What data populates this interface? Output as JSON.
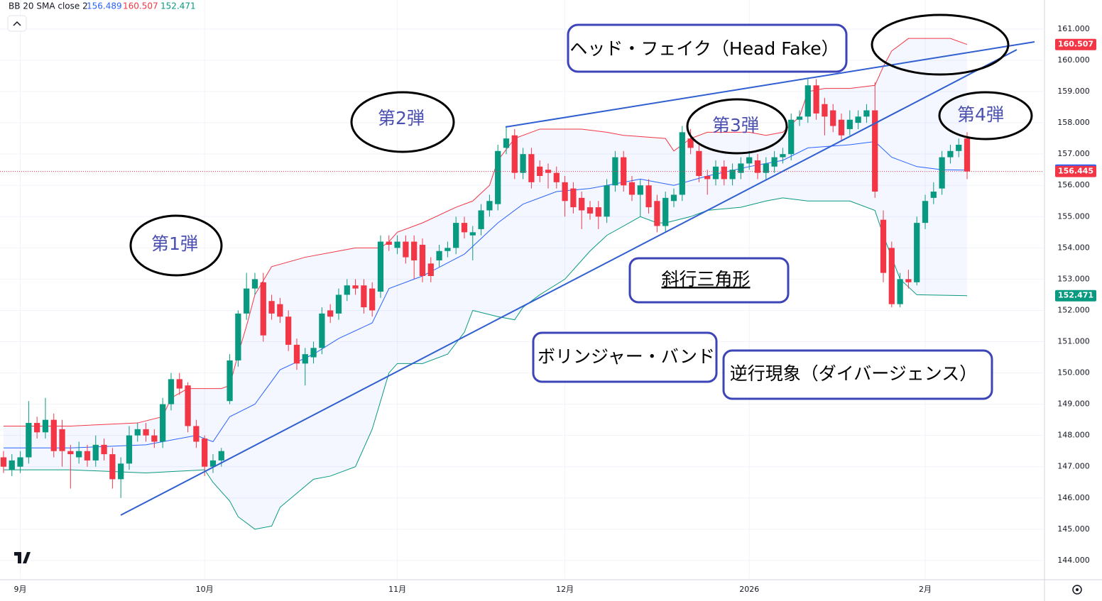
{
  "chart_data": {
    "type": "candlestick",
    "indicator_label": "BB 20 SMA close 2",
    "up_color": "#089981",
    "down_color": "#f23645",
    "open": [
      147.3,
      146.9,
      147.0,
      147.3,
      148.4,
      148.1,
      148.5,
      148.2,
      147.5,
      147.3,
      147.5,
      147.2,
      147.7,
      147.4,
      146.6,
      147.1,
      148.0,
      148.2,
      148.0,
      147.8,
      149.0,
      149.8,
      149.6,
      148.3,
      147.9,
      147.0,
      147.2,
      149.1,
      150.4,
      151.9,
      152.7,
      152.9,
      152.3,
      152.2,
      151.8,
      150.9,
      150.3,
      150.5,
      150.8,
      152.0,
      151.9,
      152.5,
      152.8,
      152.8,
      152.7,
      152.6,
      154.2,
      154.0,
      154.2,
      154.2,
      154.1,
      153.5,
      153.6,
      153.9,
      154.0,
      154.8,
      154.4,
      154.6,
      155.2,
      155.4,
      157.2,
      157.6,
      156.4,
      157.0,
      156.6,
      156.5,
      156.4,
      156.1,
      155.9,
      155.6,
      155.3,
      155.3,
      155.0,
      156.0,
      156.9,
      156.1,
      155.7,
      156.0,
      155.5,
      154.7,
      155.5,
      155.7,
      157.5,
      157.1,
      156.3,
      156.2,
      156.6,
      156.2,
      156.4,
      156.7,
      156.8,
      156.4,
      156.6,
      156.9,
      157.0,
      158.1,
      158.2,
      159.2,
      158.6,
      158.4,
      158.1,
      157.8,
      158.0,
      158.2,
      158.4,
      154.9,
      154.0,
      152.2,
      153.0,
      152.9,
      154.8,
      155.6,
      155.9,
      156.9,
      157.1,
      157.5
    ],
    "high": [
      147.5,
      147.4,
      147.5,
      149.1,
      148.6,
      149.2,
      148.7,
      148.5,
      147.7,
      147.8,
      147.7,
      148.0,
      147.9,
      147.6,
      147.3,
      148.3,
      148.4,
      148.4,
      148.2,
      149.2,
      150.0,
      150.0,
      149.7,
      148.5,
      148.0,
      147.4,
      147.6,
      150.6,
      152.0,
      153.2,
      153.2,
      153.2,
      152.5,
      152.4,
      152.0,
      151.1,
      150.8,
      151.0,
      152.1,
      152.2,
      152.7,
      153.0,
      153.0,
      153.0,
      152.9,
      154.4,
      154.4,
      154.4,
      154.4,
      154.4,
      154.3,
      153.7,
      154.1,
      154.2,
      155.0,
      155.0,
      154.7,
      155.4,
      155.7,
      157.3,
      157.9,
      157.8,
      157.2,
      157.2,
      156.8,
      156.7,
      156.6,
      156.3,
      156.1,
      155.8,
      155.5,
      155.5,
      156.2,
      157.1,
      157.1,
      156.3,
      156.2,
      156.2,
      155.7,
      155.8,
      155.9,
      157.9,
      157.8,
      157.3,
      156.5,
      156.8,
      156.8,
      156.7,
      156.9,
      157.1,
      157.0,
      156.9,
      157.1,
      157.2,
      158.3,
      158.4,
      159.4,
      159.4,
      158.8,
      158.6,
      158.3,
      158.4,
      158.4,
      158.6,
      159.3,
      155.2,
      154.2,
      153.2,
      153.3,
      155.0,
      155.7,
      156.1,
      157.1,
      157.3,
      157.5,
      157.7
    ],
    "low": [
      146.8,
      146.7,
      146.8,
      147.1,
      147.9,
      147.9,
      147.3,
      147.0,
      146.3,
      147.1,
      147.0,
      147.0,
      147.2,
      146.3,
      146.0,
      146.9,
      147.8,
      147.8,
      147.6,
      147.6,
      148.8,
      149.3,
      148.1,
      147.6,
      146.7,
      146.8,
      147.0,
      149.0,
      150.2,
      151.7,
      152.5,
      151.0,
      151.7,
      151.6,
      150.7,
      150.1,
      149.6,
      150.3,
      150.6,
      151.6,
      151.7,
      152.3,
      152.5,
      151.9,
      151.8,
      152.4,
      153.9,
      153.8,
      153.5,
      153.0,
      152.9,
      152.9,
      153.4,
      153.7,
      153.8,
      154.3,
      153.6,
      154.4,
      155.0,
      155.2,
      157.0,
      156.2,
      156.2,
      155.9,
      156.1,
      155.9,
      155.9,
      155.0,
      155.1,
      154.6,
      154.9,
      154.6,
      154.8,
      155.8,
      155.8,
      155.5,
      155.0,
      155.1,
      154.5,
      154.5,
      155.3,
      155.5,
      157.0,
      156.1,
      155.7,
      156.0,
      156.0,
      156.0,
      156.2,
      156.5,
      156.2,
      156.2,
      156.4,
      156.7,
      156.8,
      157.9,
      158.0,
      158.1,
      157.6,
      157.7,
      157.4,
      157.6,
      157.8,
      158.0,
      155.6,
      152.9,
      152.1,
      152.1,
      152.7,
      152.8,
      154.6,
      155.4,
      155.7,
      156.7,
      156.9,
      156.2
    ],
    "close": [
      147.0,
      147.2,
      147.3,
      148.4,
      148.1,
      148.5,
      147.5,
      147.5,
      147.4,
      147.5,
      147.2,
      147.7,
      147.4,
      146.6,
      147.1,
      148.0,
      148.2,
      148.0,
      147.8,
      149.0,
      149.8,
      149.5,
      148.3,
      147.8,
      147.0,
      147.2,
      147.5,
      150.4,
      151.9,
      152.7,
      153.0,
      151.2,
      151.9,
      151.8,
      150.9,
      150.3,
      150.6,
      150.8,
      151.9,
      151.8,
      152.5,
      152.8,
      152.7,
      152.1,
      152.0,
      154.2,
      154.1,
      154.2,
      153.7,
      153.6,
      153.1,
      153.1,
      153.9,
      154.0,
      154.8,
      154.5,
      154.5,
      155.2,
      155.5,
      157.1,
      157.5,
      156.4,
      157.0,
      156.1,
      156.3,
      156.4,
      156.1,
      155.5,
      155.3,
      155.2,
      155.1,
      155.0,
      156.0,
      156.9,
      156.0,
      155.7,
      156.0,
      155.3,
      154.7,
      155.6,
      155.7,
      157.7,
      157.2,
      156.3,
      156.2,
      156.6,
      156.2,
      156.5,
      156.7,
      156.9,
      156.4,
      156.7,
      156.9,
      157.0,
      158.1,
      158.2,
      159.2,
      158.3,
      158.2,
      157.9,
      157.6,
      158.1,
      158.2,
      158.4,
      155.8,
      153.2,
      152.2,
      153.0,
      152.9,
      154.8,
      155.5,
      155.8,
      156.9,
      157.1,
      157.3,
      156.445
    ],
    "bands": [
      {
        "color": "#2962ff",
        "x": [
          0,
          8,
          17,
          23,
          25,
          27,
          30,
          33,
          37,
          40,
          44,
          46,
          50,
          55,
          59,
          62,
          66,
          70,
          76,
          80,
          84,
          89,
          93,
          96,
          101,
          104,
          106,
          109,
          112,
          115
        ],
        "values": [
          147.6,
          147.6,
          147.7,
          148.0,
          147.8,
          148.6,
          149.0,
          150.1,
          150.6,
          151.1,
          151.6,
          152.7,
          153.1,
          153.8,
          154.8,
          155.4,
          155.8,
          155.9,
          156.2,
          156.0,
          156.3,
          156.6,
          156.8,
          157.2,
          157.3,
          157.4,
          156.9,
          156.6,
          156.5,
          156.489
        ]
      },
      {
        "color": "#f23645",
        "x": [
          0,
          8,
          16,
          19,
          20,
          22,
          26,
          27,
          28,
          29,
          30,
          32,
          36,
          40,
          42,
          45,
          46,
          47,
          50,
          54,
          56,
          58,
          59,
          61,
          64,
          69,
          72,
          74,
          79,
          80,
          82,
          84,
          89,
          91,
          93,
          95,
          96,
          98,
          101,
          104,
          105,
          106,
          108,
          111,
          113,
          115
        ],
        "values": [
          148.3,
          148.3,
          148.4,
          148.6,
          149.2,
          149.5,
          149.5,
          149.6,
          150.6,
          151.5,
          152.5,
          153.4,
          153.7,
          153.9,
          154.0,
          154.0,
          154.2,
          154.5,
          154.8,
          155.3,
          155.5,
          156.0,
          156.8,
          157.5,
          157.8,
          157.8,
          157.7,
          157.6,
          157.5,
          157.1,
          157.5,
          157.7,
          157.7,
          157.6,
          157.7,
          158.2,
          159.0,
          159.1,
          159.1,
          159.2,
          159.8,
          160.3,
          160.7,
          160.7,
          160.7,
          160.507
        ]
      },
      {
        "color": "#089981",
        "x": [
          0,
          8,
          17,
          24,
          25,
          27,
          28,
          30,
          32,
          33,
          37,
          39,
          42,
          44,
          46,
          47,
          50,
          53,
          55,
          56,
          59,
          61,
          62,
          64,
          67,
          70,
          72,
          76,
          78,
          79,
          82,
          84,
          88,
          91,
          93,
          96,
          101,
          104,
          105,
          107,
          109,
          115
        ],
        "values": [
          146.9,
          146.9,
          146.8,
          146.9,
          146.5,
          145.9,
          145.4,
          145.0,
          145.1,
          145.7,
          146.6,
          146.7,
          147.0,
          148.2,
          150.0,
          150.3,
          150.3,
          150.6,
          151.3,
          152.0,
          151.8,
          151.7,
          152.1,
          152.5,
          153.0,
          153.9,
          154.4,
          155.0,
          154.8,
          154.8,
          155.0,
          155.2,
          155.3,
          155.5,
          155.6,
          155.5,
          155.5,
          155.2,
          154.4,
          153.0,
          152.5,
          152.471
        ]
      }
    ],
    "band_fill": "rgba(41,98,255,0.05)",
    "xlim": [
      -0.42,
      124.15
    ],
    "xticks": [
      {
        "value": 2,
        "label": "9月"
      },
      {
        "value": 24,
        "label": "10月"
      },
      {
        "value": 47,
        "label": "11月"
      },
      {
        "value": 67,
        "label": "12月"
      },
      {
        "value": 89,
        "label": "2026"
      },
      {
        "value": 110,
        "label": "2月"
      }
    ],
    "ylim": [
      143.43,
      161.93
    ],
    "yticks": [
      {
        "value": 144,
        "label": "144.000"
      },
      {
        "value": 145,
        "label": "145.000"
      },
      {
        "value": 146,
        "label": "146.000"
      },
      {
        "value": 147,
        "label": "147.000"
      },
      {
        "value": 148,
        "label": "148.000"
      },
      {
        "value": 149,
        "label": "149.000"
      },
      {
        "value": 150,
        "label": "150.000"
      },
      {
        "value": 151,
        "label": "151.000"
      },
      {
        "value": 152,
        "label": "152.000"
      },
      {
        "value": 153,
        "label": "153.000"
      },
      {
        "value": 154,
        "label": "154.000"
      },
      {
        "value": 155,
        "label": "155.000"
      },
      {
        "value": 156,
        "label": "156.000"
      },
      {
        "value": 157,
        "label": "157.000"
      },
      {
        "value": 158,
        "label": "158.000"
      },
      {
        "value": 159,
        "label": "159.000"
      },
      {
        "value": 160,
        "label": "160.000"
      },
      {
        "value": 161,
        "label": "161.000"
      }
    ],
    "grid": true,
    "annotations": [
      "ヘッド・フェイク（Head Fake）",
      "第1弾",
      "第2弾",
      "第3弾",
      "第4弾",
      "斜行三角形",
      "ボリンジャー・バンド",
      "逆行現象（ダイバージェンス）"
    ]
  }
}
